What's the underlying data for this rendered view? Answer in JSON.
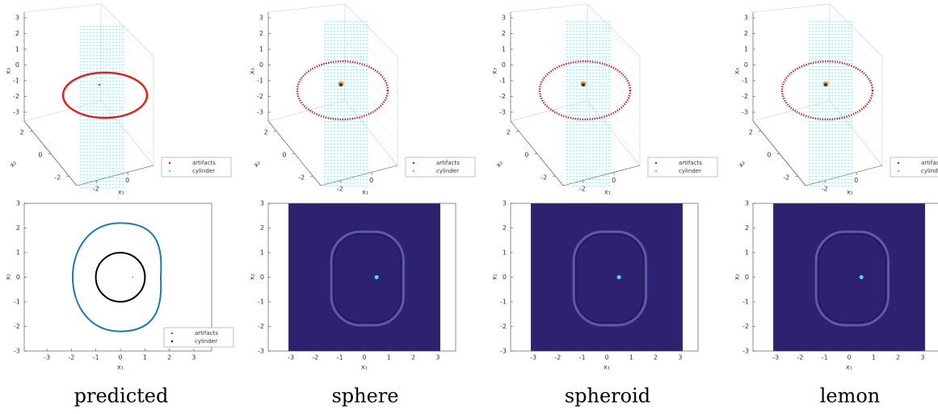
{
  "captions": [
    "predicted",
    "sphere",
    "spheroid",
    "lemon"
  ],
  "plot3d": {
    "x3_label": "x₃",
    "x2_label": "x₂",
    "x1_label": "x₁",
    "x3_ticks": [
      3,
      2,
      1,
      0,
      -1,
      -2,
      -3
    ],
    "x2_ticks": [
      2,
      0,
      -2
    ],
    "x1_ticks": [
      -2,
      0
    ],
    "legend": [
      "artifacts",
      "cylinder"
    ]
  },
  "plot2d": {
    "xlabel": "x₁",
    "ylabel": "x₂",
    "xticks": [
      -3,
      -2,
      -1,
      0,
      1,
      2,
      3
    ],
    "yticks": [
      3,
      2,
      1,
      0,
      -1,
      -2,
      -3
    ],
    "legend": [
      "artifacts",
      "cylinder"
    ]
  }
}
